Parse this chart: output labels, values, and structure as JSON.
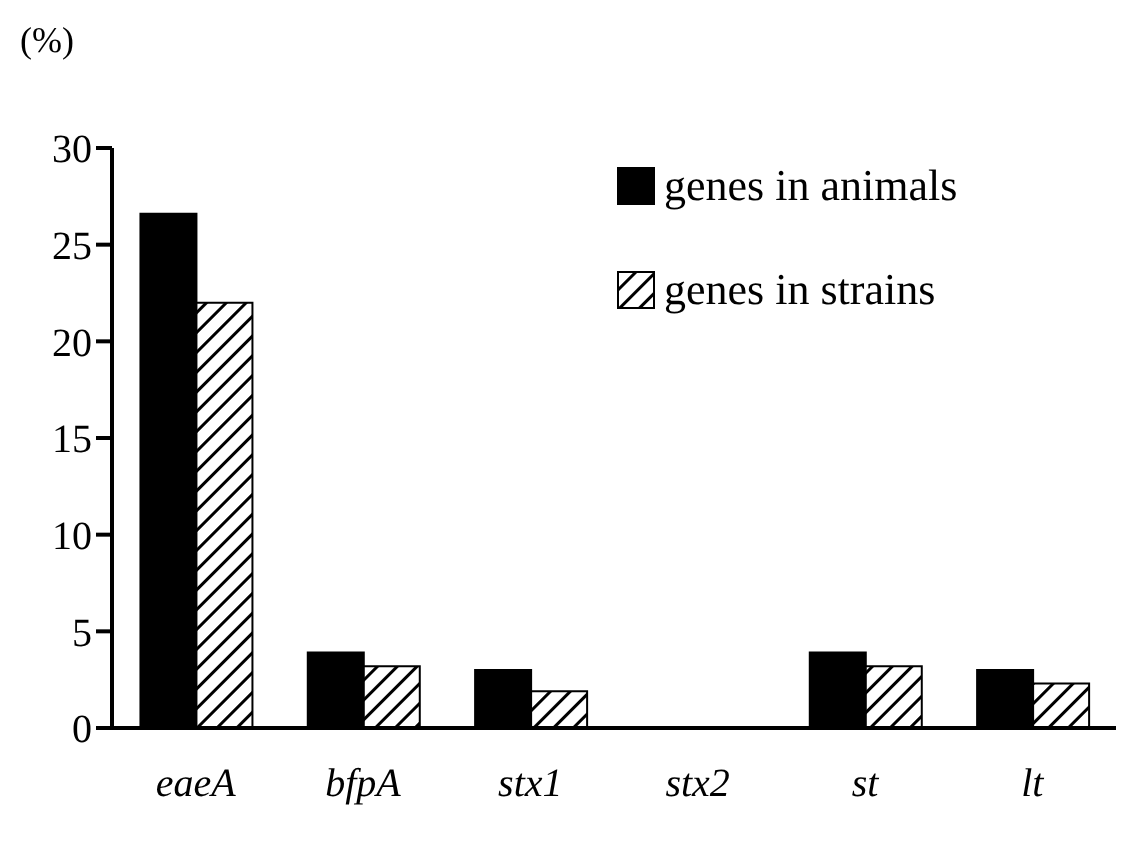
{
  "chart_data": {
    "type": "bar",
    "ylabel": "(%)",
    "categories": [
      "eaeA",
      "bfpA",
      "stx1",
      "stx2",
      "st",
      "lt"
    ],
    "series": [
      {
        "name": "genes in animals",
        "color": "#000000",
        "values": [
          26.6,
          3.9,
          3.0,
          0,
          3.9,
          3.0
        ]
      },
      {
        "name": "genes in strains",
        "color": "#000000",
        "values": [
          22.0,
          3.2,
          1.9,
          0,
          3.2,
          2.3
        ]
      }
    ],
    "ylim": [
      0,
      30
    ],
    "yticks": [
      0,
      5,
      10,
      15,
      20,
      25,
      30
    ],
    "grid": false,
    "legend": "top right"
  }
}
